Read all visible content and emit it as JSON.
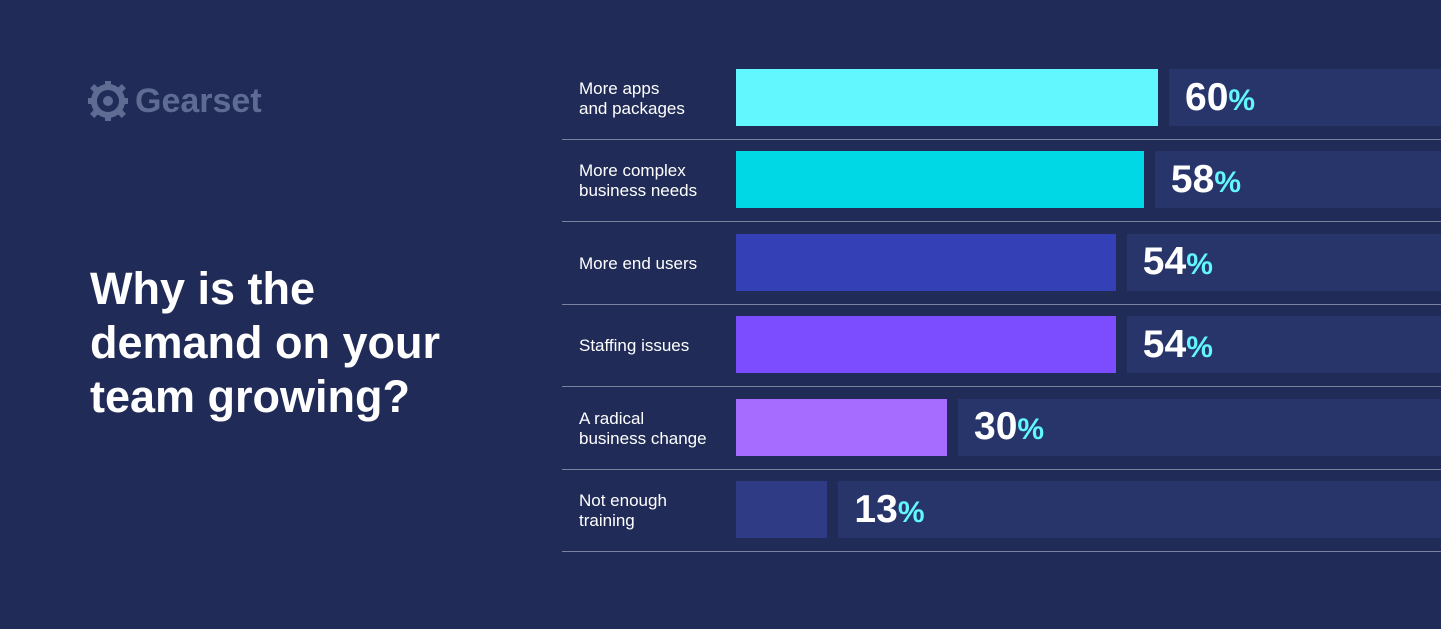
{
  "logo": {
    "text": "Gearset"
  },
  "chart_data": {
    "type": "bar",
    "orientation": "horizontal",
    "title": "Why is the demand on your team growing?",
    "categories": [
      "More apps\nand packages",
      "More complex\nbusiness needs",
      "More end users",
      "Staffing issues",
      "A radical\nbusiness change",
      "Not enough\ntraining"
    ],
    "values": [
      60,
      58,
      54,
      54,
      30,
      13
    ],
    "value_suffix": "%",
    "bar_colors": [
      "#62f7ff",
      "#00d8e6",
      "#3440b6",
      "#7b4dff",
      "#a66bff",
      "#2f3b84"
    ],
    "percent_color": "#62f7ff",
    "grid": false
  }
}
